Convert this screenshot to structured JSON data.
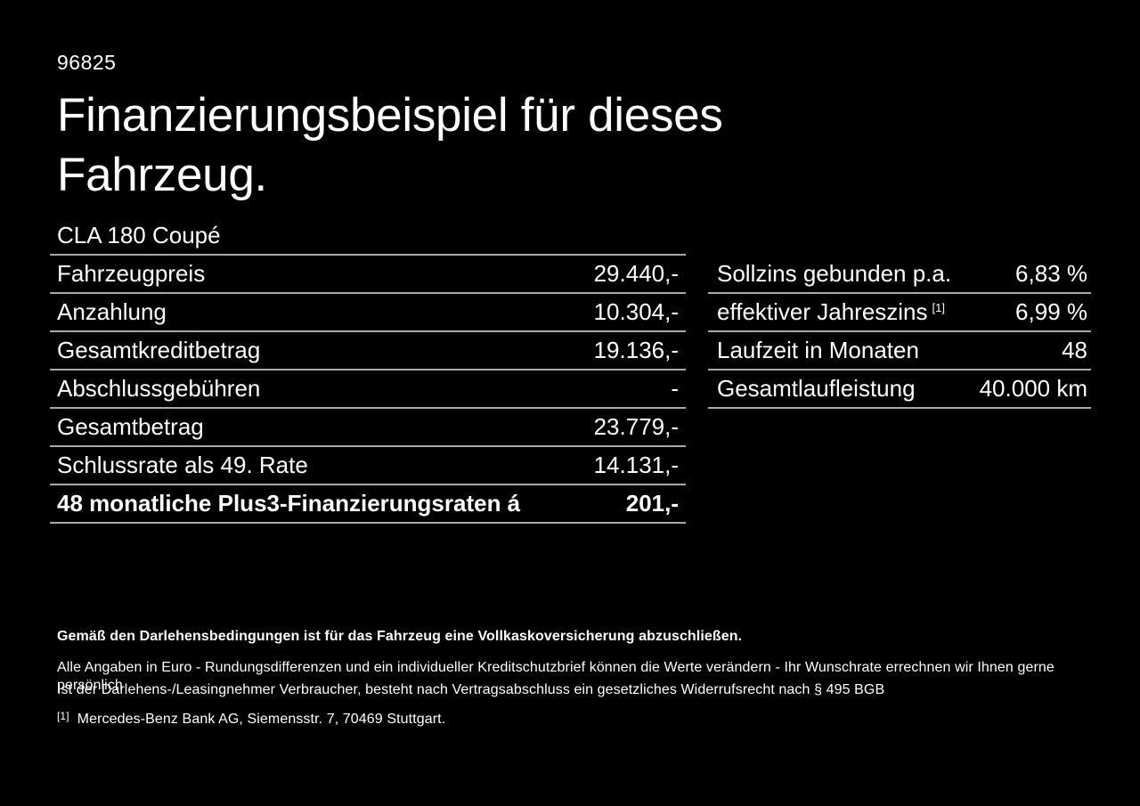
{
  "page": {
    "id_number": "96825",
    "title_line1": "Finanzierungsbeispiel für dieses",
    "title_line2": "Fahrzeug.",
    "vehicle": "CLA 180 Coupé"
  },
  "finance_table": {
    "rows": [
      {
        "label": "Fahrzeugpreis",
        "value": "29.440,-"
      },
      {
        "label": "Anzahlung",
        "value": "10.304,-"
      },
      {
        "label": "Gesamtkreditbetrag",
        "value": "19.136,-"
      },
      {
        "label": "Abschlussgebühren",
        "value": "-"
      },
      {
        "label": "Gesamtbetrag",
        "value": "23.779,-"
      },
      {
        "label": "Schlussrate als 49. Rate",
        "value": "14.131,-"
      },
      {
        "label": "48 monatliche Plus3-Finanzierungsraten á",
        "value": "201,-"
      }
    ]
  },
  "conditions_table": {
    "rows": [
      {
        "label": "Sollzins gebunden p.a.",
        "superscript": "",
        "value": "6,83 %"
      },
      {
        "label": "effektiver Jahreszins",
        "superscript": "[1]",
        "value": "6,99 %"
      },
      {
        "label": "Laufzeit in Monaten",
        "superscript": "",
        "value": "48"
      },
      {
        "label": "Gesamtlaufleistung",
        "superscript": "",
        "value": "40.000 km"
      }
    ]
  },
  "footer": {
    "bold_note": "Gemäß den Darlehensbedingungen ist für das Fahrzeug eine Vollkaskoversicherung abzuschließen.",
    "note1": "Alle Angaben in Euro - Rundungsdifferenzen und ein individueller Kreditschutzbrief können die Werte verändern - Ihr Wunschrate errechnen wir Ihnen gerne persönlich",
    "note2": "Ist der Darlehens-/Leasingnehmer Verbraucher, besteht nach Vertragsabschluss ein gesetzliches Widerrufsrecht nach § 495 BGB",
    "footnote_marker": "[1]",
    "footnote_text": "Mercedes-Benz Bank AG, Siemensstr. 7, 70469 Stuttgart."
  },
  "colors": {
    "background": "#000000",
    "text": "#ffffff",
    "divider": "#a9a9a9"
  }
}
